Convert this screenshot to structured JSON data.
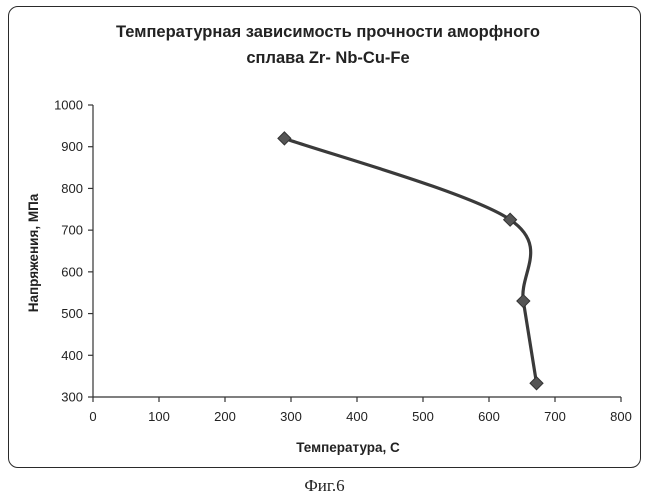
{
  "chart_data": {
    "type": "line",
    "title_lines": [
      "Температурная зависимость прочности аморфного",
      "сплава Zr- Nb-Cu-Fe"
    ],
    "xlabel": "Температура, С",
    "ylabel": "Напряжения, МПа",
    "xlim": [
      0,
      800
    ],
    "ylim": [
      300,
      1000
    ],
    "x_ticks": [
      "0",
      "100",
      "200",
      "300",
      "400",
      "500",
      "600",
      "700",
      "800"
    ],
    "y_ticks": [
      "300",
      "400",
      "500",
      "600",
      "700",
      "800",
      "900",
      "1000"
    ],
    "grid": false,
    "legend": "none",
    "series": [
      {
        "marker": "diamond",
        "color": "#3a3a3a",
        "x": [
          290,
          632,
          652,
          672
        ],
        "y": [
          920,
          725,
          530,
          333
        ]
      }
    ]
  },
  "caption": "Фиг.6"
}
